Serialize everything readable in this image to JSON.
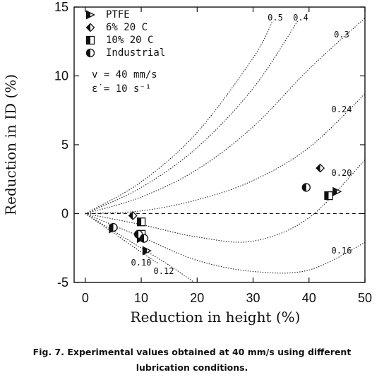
{
  "chart_data": {
    "type": "scatter",
    "title": "",
    "xlabel": "Reduction in height (%)",
    "ylabel": "Reduction in ID (%)",
    "xlim": [
      -2,
      50
    ],
    "ylim": [
      -5,
      15
    ],
    "xticks": [
      0,
      10,
      20,
      30,
      40,
      50
    ],
    "yticks": [
      -5,
      0,
      5,
      10,
      15
    ],
    "grid": false,
    "legend_position": "top-left",
    "legend": [
      {
        "marker": "triangle-right",
        "label": "PTFE"
      },
      {
        "marker": "diamond-half",
        "label": "6% 20 C"
      },
      {
        "marker": "square-half",
        "label": "10% 20 C"
      },
      {
        "marker": "circle-half",
        "label": "Industrial"
      }
    ],
    "conditions": [
      "v = 40 mm/s",
      "ε̇ = 10 s⁻¹"
    ],
    "friction_curves": [
      {
        "label": "0.5",
        "points": [
          [
            0,
            0
          ],
          [
            10,
            2.3
          ],
          [
            20,
            5.9
          ],
          [
            30,
            11.3
          ],
          [
            33.5,
            14
          ]
        ]
      },
      {
        "label": "0.4",
        "points": [
          [
            0,
            0
          ],
          [
            10,
            1.9
          ],
          [
            20,
            4.8
          ],
          [
            30,
            9.1
          ],
          [
            38,
            14
          ]
        ]
      },
      {
        "label": "0.3",
        "points": [
          [
            0,
            0
          ],
          [
            10,
            1.2
          ],
          [
            20,
            3.2
          ],
          [
            30,
            6.3
          ],
          [
            40,
            10.5
          ],
          [
            50,
            14.2
          ]
        ]
      },
      {
        "label": "0.24",
        "points": [
          [
            0,
            0
          ],
          [
            10,
            0.2
          ],
          [
            20,
            1.0
          ],
          [
            30,
            2.4
          ],
          [
            40,
            4.8
          ],
          [
            50,
            8.7
          ]
        ]
      },
      {
        "label": "0.20",
        "points": [
          [
            0,
            0
          ],
          [
            10,
            -0.8
          ],
          [
            20,
            -1.7
          ],
          [
            30,
            -2.0
          ],
          [
            40,
            -0.3
          ],
          [
            50,
            3.9
          ]
        ]
      },
      {
        "label": "0.16",
        "points": [
          [
            0,
            0
          ],
          [
            10,
            -1.7
          ],
          [
            20,
            -3.4
          ],
          [
            30,
            -4.2
          ],
          [
            40,
            -4.1
          ],
          [
            50,
            -2.1
          ]
        ]
      },
      {
        "label": "0.12",
        "points": [
          [
            0,
            0
          ],
          [
            5,
            -1.25
          ],
          [
            10,
            -2.5
          ],
          [
            15,
            -3.75
          ],
          [
            19.5,
            -5
          ]
        ]
      },
      {
        "label": "0.10",
        "points": [
          [
            0,
            0
          ],
          [
            5,
            -1.4
          ],
          [
            10,
            -2.8
          ],
          [
            13,
            -3.6
          ]
        ]
      }
    ],
    "series": [
      {
        "marker": "triangle-right",
        "points": [
          [
            5,
            -1.1
          ],
          [
            10,
            -1.8
          ],
          [
            11,
            -2.7
          ],
          [
            45,
            1.6
          ]
        ]
      },
      {
        "marker": "diamond-half",
        "points": [
          [
            8.5,
            -0.15
          ],
          [
            42,
            3.3
          ]
        ]
      },
      {
        "marker": "square-half",
        "points": [
          [
            10,
            -0.6
          ],
          [
            10,
            -1.5
          ],
          [
            43.5,
            1.3
          ]
        ]
      },
      {
        "marker": "circle-half",
        "points": [
          [
            5,
            -1.0
          ],
          [
            9.5,
            -1.5
          ],
          [
            10.5,
            -1.8
          ],
          [
            39.5,
            1.9
          ]
        ]
      }
    ],
    "reference_line": {
      "y": 0,
      "style": "dashed"
    }
  },
  "caption": {
    "text": "Fig. 7. Experimental values obtained at 40 mm/s using different lubrication conditions."
  }
}
